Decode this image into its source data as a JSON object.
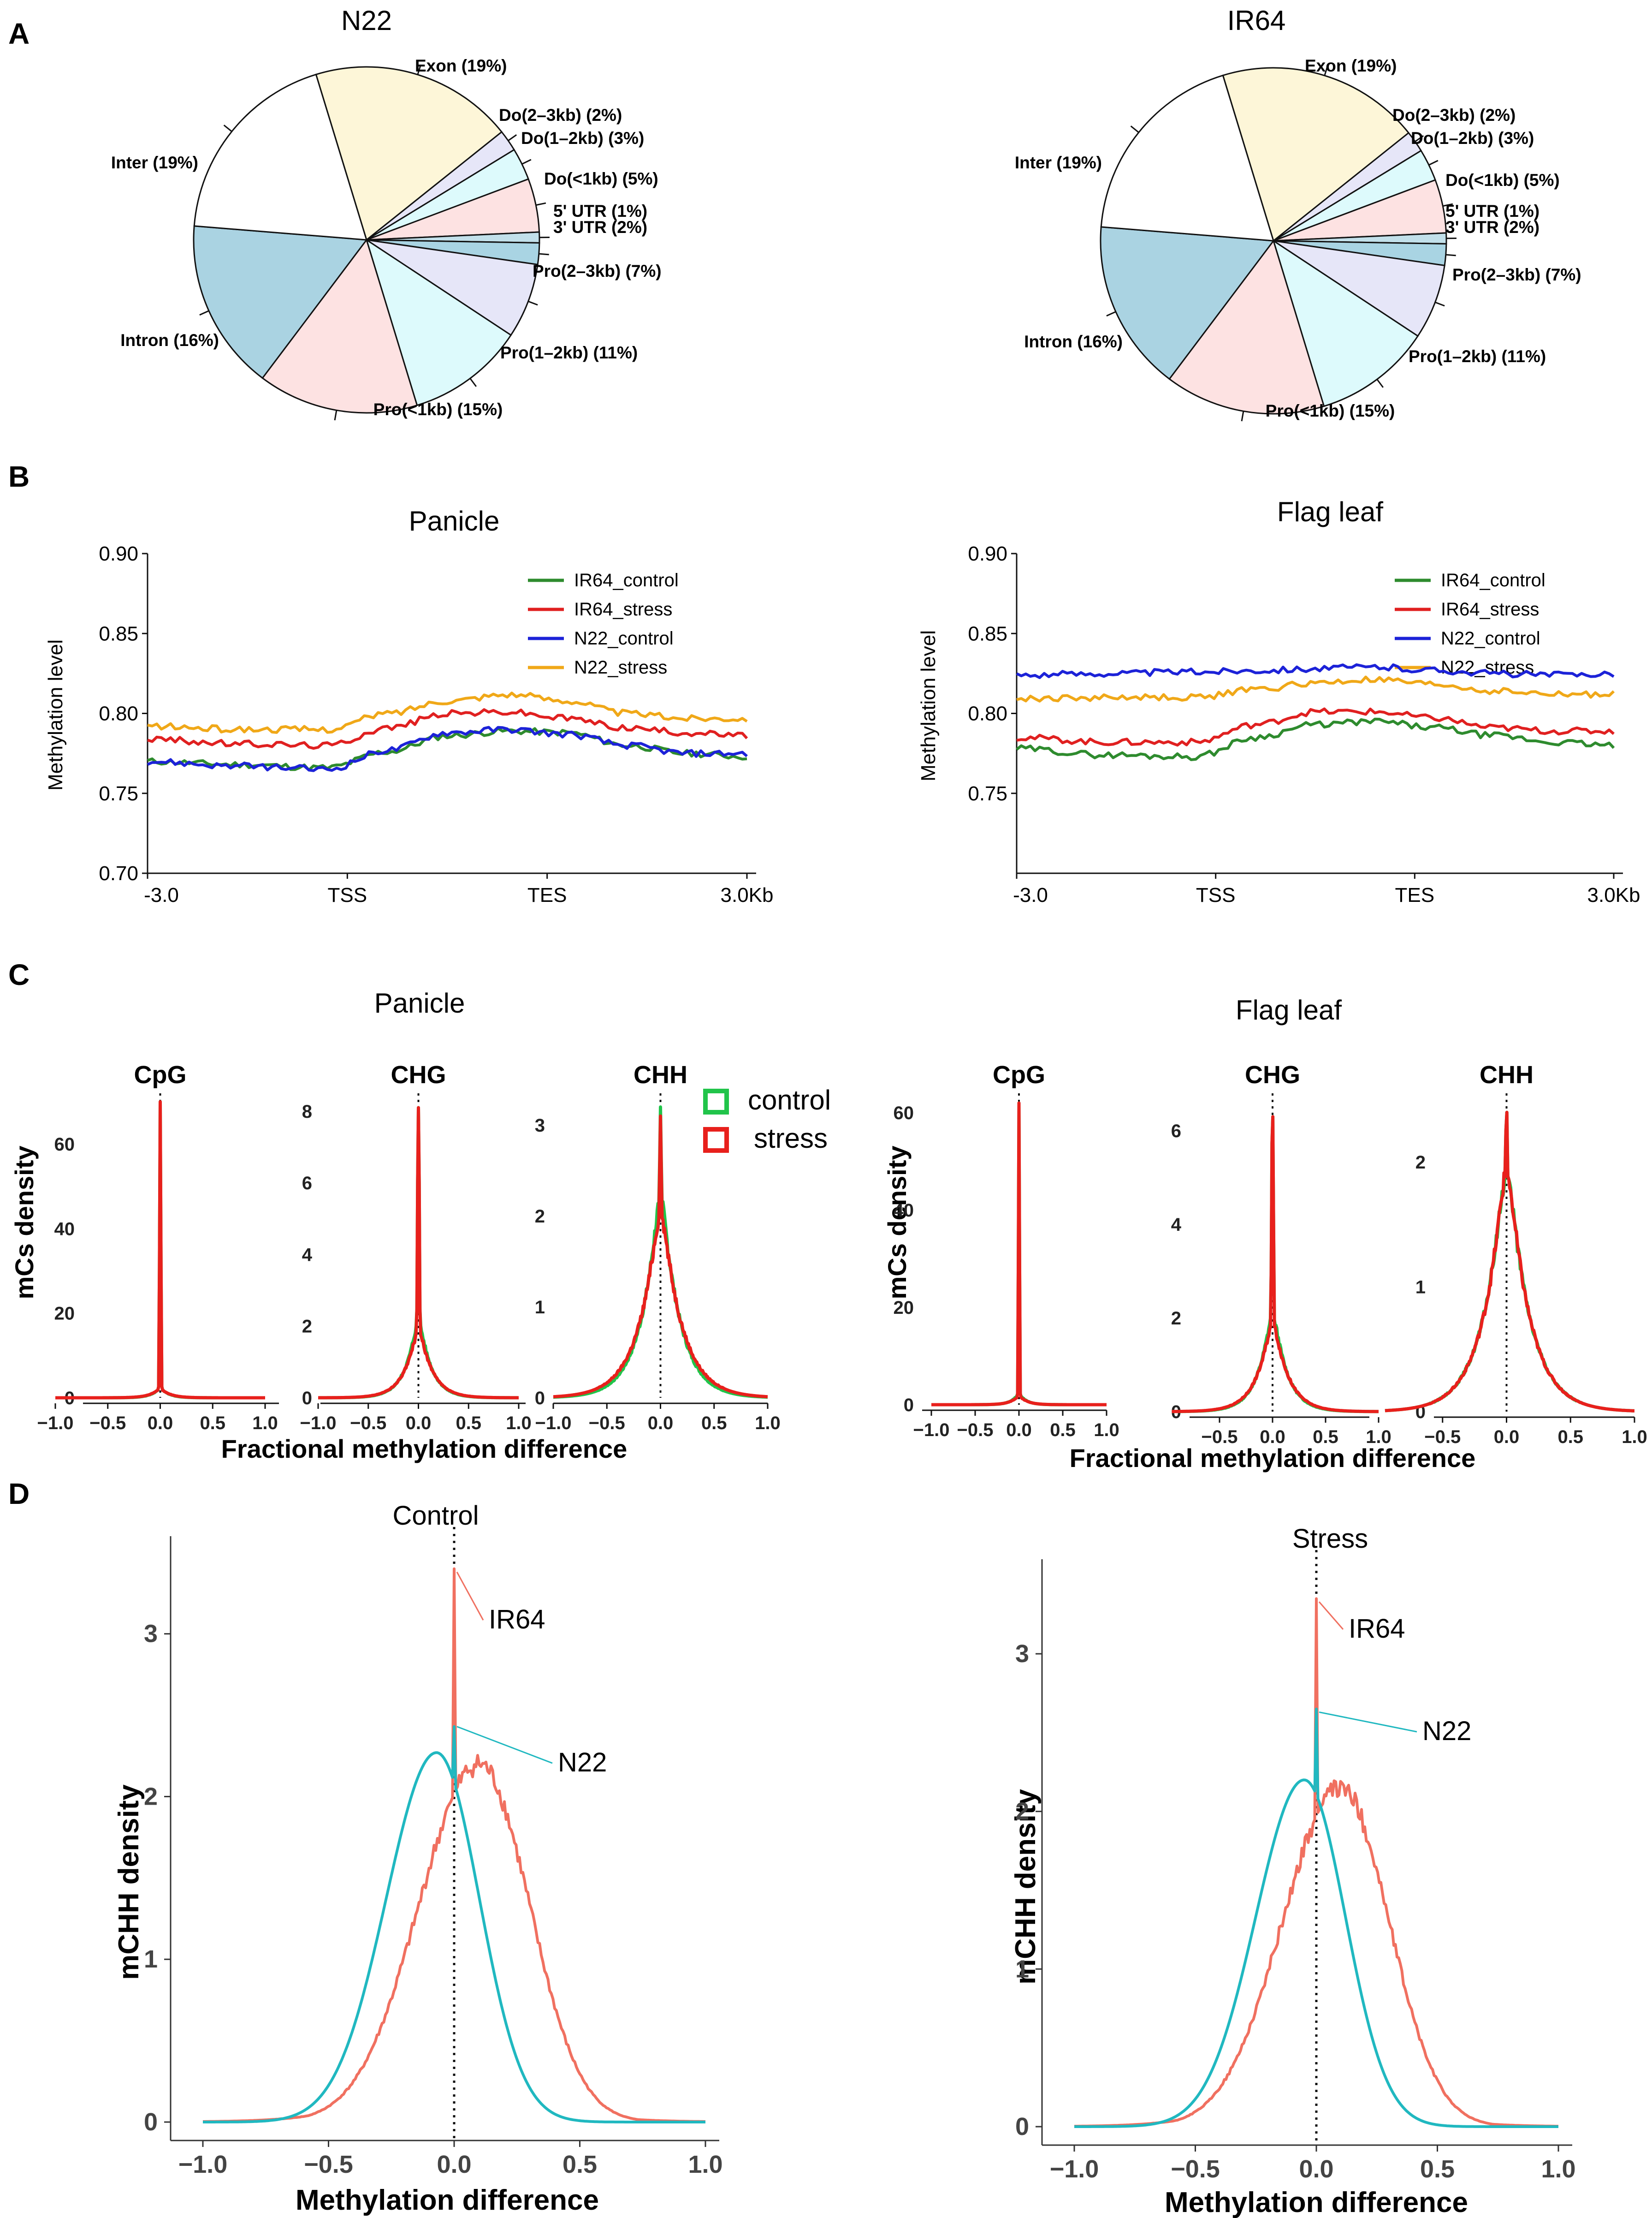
{
  "panel_letters": [
    "A",
    "B",
    "C",
    "D"
  ],
  "colors": {
    "exon": "#fdf6d8",
    "down": "#e6e6f8",
    "down_cyan": "#ddfafc",
    "down_pink": "#fde2e2",
    "utr5": "#c2e0ea",
    "utr3": "#a9d4e3",
    "pro_lav": "#e6e6f8",
    "pro_cyan": "#ddfafc",
    "pro_pink": "#fde2e2",
    "intron": "#aad3e2",
    "inter": "#ffffff",
    "ir64_control": "#2e8b2e",
    "ir64_stress": "#e02020",
    "n22_control": "#1c22d8",
    "n22_stress": "#f0a818",
    "control": "#21c44a",
    "stress": "#e8201c",
    "ir64_d": "#f07060",
    "n22_d": "#20b8c0"
  },
  "chart_data": [
    {
      "id": "A1",
      "type": "pie",
      "title": "N22",
      "slices": [
        {
          "label": "Exon (19%)",
          "value": 19,
          "color": "#fdf6d8"
        },
        {
          "label": "Do(2–3kb) (2%)",
          "value": 2,
          "color": "#e6e6f8"
        },
        {
          "label": "Do(1–2kb) (3%)",
          "value": 3,
          "color": "#ddfafc"
        },
        {
          "label": "Do(<1kb) (5%)",
          "value": 5,
          "color": "#fde2e2"
        },
        {
          "label": "5' UTR (1%)",
          "value": 1,
          "color": "#c2e0ea"
        },
        {
          "label": "3' UTR (2%)",
          "value": 2,
          "color": "#a9d4e3"
        },
        {
          "label": "Pro(2–3kb) (7%)",
          "value": 7,
          "color": "#e6e6f8"
        },
        {
          "label": "Pro(1–2kb) (11%)",
          "value": 11,
          "color": "#ddfafc"
        },
        {
          "label": "Pro(<1kb) (15%)",
          "value": 15,
          "color": "#fde2e2"
        },
        {
          "label": "Intron (16%)",
          "value": 16,
          "color": "#aad3e2"
        },
        {
          "label": "Inter (19%)",
          "value": 19,
          "color": "#ffffff"
        }
      ]
    },
    {
      "id": "A2",
      "type": "pie",
      "title": "IR64",
      "slices": [
        {
          "label": "Exon (19%)",
          "value": 19,
          "color": "#fdf6d8"
        },
        {
          "label": "Do(2–3kb) (2%)",
          "value": 2,
          "color": "#e6e6f8"
        },
        {
          "label": "Do(1–2kb) (3%)",
          "value": 3,
          "color": "#ddfafc"
        },
        {
          "label": "Do(<1kb) (5%)",
          "value": 5,
          "color": "#fde2e2"
        },
        {
          "label": "5' UTR (1%)",
          "value": 1,
          "color": "#c2e0ea"
        },
        {
          "label": "3' UTR (2%)",
          "value": 2,
          "color": "#a9d4e3"
        },
        {
          "label": "Pro(2–3kb) (7%)",
          "value": 7,
          "color": "#e6e6f8"
        },
        {
          "label": "Pro(1–2kb) (11%)",
          "value": 11,
          "color": "#ddfafc"
        },
        {
          "label": "Pro(<1kb) (15%)",
          "value": 15,
          "color": "#fde2e2"
        },
        {
          "label": "Intron (16%)",
          "value": 16,
          "color": "#aad3e2"
        },
        {
          "label": "Inter (19%)",
          "value": 19,
          "color": "#ffffff"
        }
      ]
    },
    {
      "id": "B1",
      "type": "line",
      "title": "Panicle",
      "ylabel": "Methylation level",
      "ylim": [
        0.7,
        0.9
      ],
      "yticks": [
        "0.70",
        "0.75",
        "0.80",
        "0.85",
        "0.90"
      ],
      "xticks": [
        "-3.0",
        "TSS",
        "TES",
        "3.0Kb"
      ],
      "series": [
        {
          "name": "IR64_control",
          "color": "#2e8b2e",
          "knots": [
            [
              0,
              0.77
            ],
            [
              15,
              0.768
            ],
            [
              30,
              0.766
            ],
            [
              40,
              0.776
            ],
            [
              50,
              0.786
            ],
            [
              60,
              0.789
            ],
            [
              70,
              0.788
            ],
            [
              80,
              0.78
            ],
            [
              90,
              0.775
            ],
            [
              100,
              0.773
            ]
          ]
        },
        {
          "name": "IR64_stress",
          "color": "#e02020",
          "knots": [
            [
              0,
              0.784
            ],
            [
              15,
              0.781
            ],
            [
              30,
              0.78
            ],
            [
              40,
              0.791
            ],
            [
              50,
              0.8
            ],
            [
              60,
              0.801
            ],
            [
              70,
              0.797
            ],
            [
              80,
              0.791
            ],
            [
              90,
              0.788
            ],
            [
              100,
              0.786
            ]
          ]
        },
        {
          "name": "N22_control",
          "color": "#1c22d8",
          "knots": [
            [
              0,
              0.77
            ],
            [
              15,
              0.767
            ],
            [
              30,
              0.765
            ],
            [
              40,
              0.777
            ],
            [
              50,
              0.788
            ],
            [
              60,
              0.79
            ],
            [
              70,
              0.787
            ],
            [
              80,
              0.78
            ],
            [
              90,
              0.775
            ],
            [
              100,
              0.775
            ]
          ]
        },
        {
          "name": "N22_stress",
          "color": "#f0a818",
          "knots": [
            [
              0,
              0.792
            ],
            [
              15,
              0.79
            ],
            [
              30,
              0.79
            ],
            [
              40,
              0.8
            ],
            [
              50,
              0.808
            ],
            [
              60,
              0.812
            ],
            [
              70,
              0.808
            ],
            [
              80,
              0.8
            ],
            [
              90,
              0.797
            ],
            [
              100,
              0.797
            ]
          ]
        }
      ]
    },
    {
      "id": "B2",
      "type": "line",
      "title": "Flag leaf",
      "ylabel": "Methylation level",
      "ylim": [
        0.7,
        0.9
      ],
      "yticks": [
        "0.75",
        "0.80",
        "0.85",
        "0.90"
      ],
      "xticks": [
        "-3.0",
        "TSS",
        "TES",
        "3.0Kb"
      ],
      "series": [
        {
          "name": "IR64_control",
          "color": "#2e8b2e",
          "knots": [
            [
              0,
              0.778
            ],
            [
              15,
              0.774
            ],
            [
              30,
              0.773
            ],
            [
              40,
              0.785
            ],
            [
              50,
              0.793
            ],
            [
              60,
              0.795
            ],
            [
              70,
              0.791
            ],
            [
              80,
              0.786
            ],
            [
              90,
              0.782
            ],
            [
              100,
              0.78
            ]
          ]
        },
        {
          "name": "IR64_stress",
          "color": "#e02020",
          "knots": [
            [
              0,
              0.785
            ],
            [
              15,
              0.782
            ],
            [
              30,
              0.782
            ],
            [
              40,
              0.793
            ],
            [
              50,
              0.801
            ],
            [
              60,
              0.801
            ],
            [
              70,
              0.797
            ],
            [
              80,
              0.791
            ],
            [
              90,
              0.789
            ],
            [
              100,
              0.789
            ]
          ]
        },
        {
          "name": "N22_control",
          "color": "#1c22d8",
          "knots": [
            [
              0,
              0.824
            ],
            [
              15,
              0.825
            ],
            [
              30,
              0.826
            ],
            [
              40,
              0.827
            ],
            [
              50,
              0.828
            ],
            [
              60,
              0.829
            ],
            [
              70,
              0.827
            ],
            [
              80,
              0.825
            ],
            [
              90,
              0.824
            ],
            [
              100,
              0.825
            ]
          ]
        },
        {
          "name": "N22_stress",
          "color": "#f0a818",
          "knots": [
            [
              0,
              0.809
            ],
            [
              15,
              0.81
            ],
            [
              30,
              0.81
            ],
            [
              40,
              0.815
            ],
            [
              50,
              0.819
            ],
            [
              60,
              0.821
            ],
            [
              70,
              0.818
            ],
            [
              80,
              0.814
            ],
            [
              90,
              0.812
            ],
            [
              100,
              0.812
            ]
          ]
        }
      ]
    },
    {
      "id": "C1",
      "type": "line",
      "title": "Panicle",
      "ylabel": "mCs density",
      "xlabel": "Fractional methylation difference",
      "legend": [
        "control",
        "stress"
      ],
      "subplots": [
        {
          "context": "CpG",
          "ymax": 72,
          "yticks": [
            0,
            20,
            40,
            60
          ],
          "xticks": [
            "−1.0",
            "−0.5",
            "0.0",
            "0.5",
            "1.0"
          ],
          "xmin": -1.0,
          "control": {
            "peak": 70,
            "w": 0.006,
            "base": 2.5,
            "bw": 0.08
          },
          "stress": {
            "peak": 70,
            "w": 0.006,
            "base": 2.4,
            "bw": 0.09
          }
        },
        {
          "context": "CHG",
          "ymax": 8.5,
          "yticks": [
            0,
            2,
            4,
            6,
            8
          ],
          "xticks": [
            "−1.0",
            "−0.5",
            "0.0",
            "0.5",
            "1.0"
          ],
          "xmin": -1.0,
          "control": {
            "peak": 8.1,
            "w": 0.01,
            "base": 2.5,
            "bw": 0.12
          },
          "stress": {
            "peak": 8.1,
            "w": 0.01,
            "base": 2.2,
            "bw": 0.13
          }
        },
        {
          "context": "CHH",
          "ymax": 3.35,
          "yticks": [
            0,
            1,
            2,
            3
          ],
          "xticks": [
            "−1.0",
            "−0.5",
            "0.0",
            "0.5",
            "1.0"
          ],
          "xmin": -1.0,
          "control": {
            "peak": 3.2,
            "w": 0.012,
            "base": 2.5,
            "bw": 0.17
          },
          "stress": {
            "peak": 3.1,
            "w": 0.012,
            "base": 2.3,
            "bw": 0.19
          }
        }
      ]
    },
    {
      "id": "C2",
      "type": "line",
      "title": "Flag leaf",
      "ylabel": "mCs density",
      "xlabel": "Fractional methylation difference",
      "subplots": [
        {
          "context": "CpG",
          "ymax": 64,
          "yticks": [
            0,
            20,
            40,
            60
          ],
          "xticks": [
            "−1.0",
            "−0.5",
            "0.0",
            "0.5",
            "1.0"
          ],
          "xmin": -1.0,
          "control": {
            "peak": 62,
            "w": 0.006,
            "base": 2.5,
            "bw": 0.08
          },
          "stress": {
            "peak": 62,
            "w": 0.006,
            "base": 2.0,
            "bw": 0.09
          }
        },
        {
          "context": "CHG",
          "ymax": 6.8,
          "yticks": [
            0,
            2,
            4,
            6
          ],
          "xticks": [
            "−0.5",
            "0.0",
            "0.5",
            "1.0"
          ],
          "xmin": -0.95,
          "control": {
            "peak": 6.5,
            "w": 0.01,
            "base": 2.4,
            "bw": 0.13
          },
          "stress": {
            "peak": 6.5,
            "w": 0.01,
            "base": 2.2,
            "bw": 0.14
          }
        },
        {
          "context": "CHH",
          "ymax": 2.55,
          "yticks": [
            0,
            1,
            2
          ],
          "xticks": [
            "−0.5",
            "0.0",
            "0.5",
            "1.0"
          ],
          "xmin": -0.95,
          "control": {
            "peak": 2.45,
            "w": 0.012,
            "base": 2.2,
            "bw": 0.17
          },
          "stress": {
            "peak": 2.45,
            "w": 0.012,
            "base": 2.2,
            "bw": 0.17
          }
        }
      ]
    },
    {
      "id": "D1",
      "type": "line",
      "title": "Control",
      "xlabel": "Methylation difference",
      "ylabel": "mCHH density",
      "xlim": [
        -1.0,
        1.0
      ],
      "ylim": [
        0,
        3.6
      ],
      "yticks": [
        "0",
        "1",
        "2",
        "3"
      ],
      "xticks": [
        "−1.0",
        "−0.5",
        "0.0",
        "0.5",
        "1.0"
      ],
      "series": [
        {
          "name": "IR64",
          "color": "#f07060",
          "peak": 3.4,
          "center": 0.1,
          "base": 2.2,
          "bw": 0.2
        },
        {
          "name": "N22",
          "color": "#20b8c0",
          "peak": 2.43,
          "center": -0.07,
          "base": 2.27,
          "bw": 0.22
        }
      ]
    },
    {
      "id": "D2",
      "type": "line",
      "title": "Stress",
      "xlabel": "Methylation difference",
      "ylabel": "mCHH density",
      "xlim": [
        -1.0,
        1.0
      ],
      "ylim": [
        0,
        3.6
      ],
      "yticks": [
        "0",
        "1",
        "2",
        "3"
      ],
      "xticks": [
        "−1.0",
        "−0.5",
        "0.0",
        "0.5",
        "1.0"
      ],
      "series": [
        {
          "name": "IR64",
          "color": "#f07060",
          "peak": 3.35,
          "center": 0.1,
          "base": 2.15,
          "bw": 0.2
        },
        {
          "name": "N22",
          "color": "#20b8c0",
          "peak": 2.65,
          "center": -0.05,
          "base": 2.2,
          "bw": 0.2
        }
      ]
    }
  ]
}
